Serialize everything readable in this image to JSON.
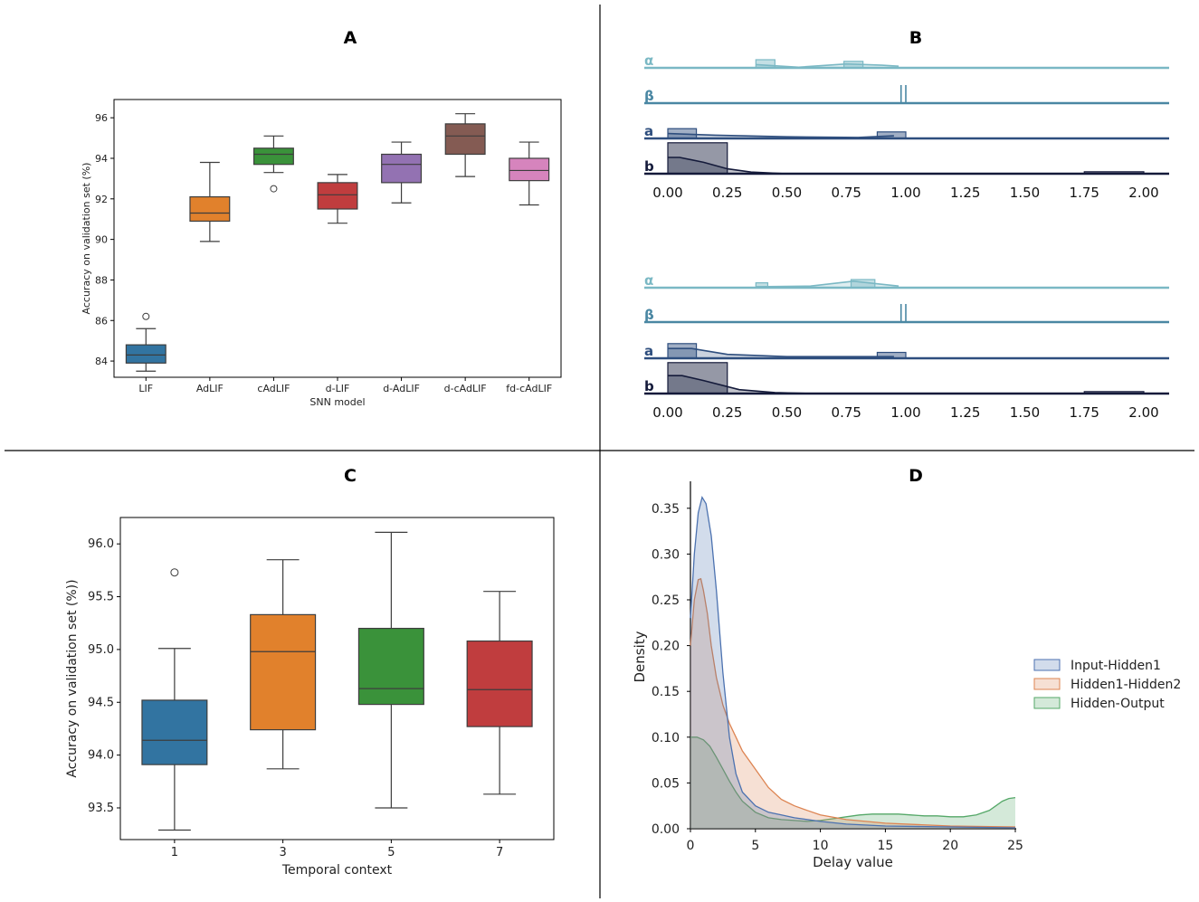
{
  "panels": {
    "A": "A",
    "B": "B",
    "C": "C",
    "D": "D"
  },
  "chart_data": [
    {
      "id": "A",
      "type": "box",
      "title": "A",
      "xlabel": "SNN model",
      "ylabel": "Accuracy on validation set (%)",
      "ylim": [
        83.2,
        96.9
      ],
      "yticks": [
        84,
        86,
        88,
        90,
        92,
        94,
        96
      ],
      "categories": [
        "LIF",
        "AdLIF",
        "cAdLIF",
        "d-LIF",
        "d-AdLIF",
        "d-cAdLIF",
        "fd-cAdLIF"
      ],
      "colors": [
        "#3274a1",
        "#e1812c",
        "#3a923a",
        "#c03d3e",
        "#9372b2",
        "#845b53",
        "#d684bd"
      ],
      "boxes": [
        {
          "whislo": 83.5,
          "q1": 83.9,
          "med": 84.3,
          "q3": 84.8,
          "whishi": 85.6,
          "fliers": [
            86.2
          ]
        },
        {
          "whislo": 89.9,
          "q1": 90.9,
          "med": 91.3,
          "q3": 92.1,
          "whishi": 93.8,
          "fliers": []
        },
        {
          "whislo": 93.3,
          "q1": 93.7,
          "med": 94.2,
          "q3": 94.5,
          "whishi": 95.1,
          "fliers": [
            92.5
          ]
        },
        {
          "whislo": 90.8,
          "q1": 91.5,
          "med": 92.2,
          "q3": 92.8,
          "whishi": 93.2,
          "fliers": []
        },
        {
          "whislo": 91.8,
          "q1": 92.8,
          "med": 93.7,
          "q3": 94.2,
          "whishi": 94.8,
          "fliers": []
        },
        {
          "whislo": 93.1,
          "q1": 94.2,
          "med": 95.1,
          "q3": 95.7,
          "whishi": 96.2,
          "fliers": []
        },
        {
          "whislo": 91.7,
          "q1": 92.9,
          "med": 93.4,
          "q3": 94.0,
          "whishi": 94.8,
          "fliers": []
        }
      ]
    },
    {
      "id": "B",
      "type": "ridgeline-histogram",
      "title": "B",
      "xlim": [
        -0.05,
        2.1
      ],
      "xticks": [
        "0.00",
        "0.25",
        "0.50",
        "0.75",
        "1.00",
        "1.25",
        "1.50",
        "1.75",
        "2.00"
      ],
      "row_labels": [
        "α",
        "β",
        "a",
        "b"
      ],
      "row_colors": [
        "#7ab8c4",
        "#4a87a3",
        "#2e4e7e",
        "#141a3a"
      ],
      "subplots": [
        {
          "rows": [
            {
              "bars": [
                {
                  "x0": 0.37,
                  "x1": 0.45,
                  "h": 0.25
                },
                {
                  "x0": 0.74,
                  "x1": 0.82,
                  "h": 0.2
                }
              ],
              "kde": [
                [
                  0.37,
                  0.1
                ],
                [
                  0.55,
                  0.02
                ],
                [
                  0.75,
                  0.12
                ],
                [
                  0.9,
                  0.08
                ],
                [
                  0.97,
                  0.05
                ]
              ]
            },
            {
              "bars": [],
              "spikes": [
                0.98,
                1.0
              ]
            },
            {
              "bars": [
                {
                  "x0": 0.0,
                  "x1": 0.12,
                  "h": 0.3
                },
                {
                  "x0": 0.88,
                  "x1": 1.0,
                  "h": 0.2
                }
              ],
              "kde": [
                [
                  0.0,
                  0.15
                ],
                [
                  0.2,
                  0.1
                ],
                [
                  0.5,
                  0.05
                ],
                [
                  0.8,
                  0.03
                ],
                [
                  0.95,
                  0.08
                ]
              ]
            },
            {
              "bars": [
                {
                  "x0": 0.0,
                  "x1": 0.25,
                  "h": 0.95
                },
                {
                  "x0": 1.75,
                  "x1": 2.0,
                  "h": 0.06
                }
              ],
              "kde": [
                [
                  0.0,
                  0.5
                ],
                [
                  0.05,
                  0.5
                ],
                [
                  0.15,
                  0.35
                ],
                [
                  0.25,
                  0.15
                ],
                [
                  0.35,
                  0.05
                ],
                [
                  0.5,
                  0.0
                ],
                [
                  2.0,
                  0.0
                ]
              ]
            }
          ]
        },
        {
          "rows": [
            {
              "bars": [
                {
                  "x0": 0.37,
                  "x1": 0.42,
                  "h": 0.15
                },
                {
                  "x0": 0.77,
                  "x1": 0.87,
                  "h": 0.25
                }
              ],
              "kde": [
                [
                  0.37,
                  0.03
                ],
                [
                  0.6,
                  0.05
                ],
                [
                  0.78,
                  0.2
                ],
                [
                  0.88,
                  0.12
                ],
                [
                  0.97,
                  0.05
                ]
              ]
            },
            {
              "bars": [],
              "spikes": [
                0.98,
                1.0
              ]
            },
            {
              "bars": [
                {
                  "x0": 0.0,
                  "x1": 0.12,
                  "h": 0.45
                },
                {
                  "x0": 0.88,
                  "x1": 1.0,
                  "h": 0.18
                }
              ],
              "kde": [
                [
                  0.0,
                  0.3
                ],
                [
                  0.1,
                  0.3
                ],
                [
                  0.25,
                  0.12
                ],
                [
                  0.5,
                  0.05
                ],
                [
                  0.95,
                  0.05
                ]
              ]
            },
            {
              "bars": [
                {
                  "x0": 0.0,
                  "x1": 0.25,
                  "h": 0.95
                },
                {
                  "x0": 1.75,
                  "x1": 2.0,
                  "h": 0.06
                }
              ],
              "kde": [
                [
                  0.0,
                  0.55
                ],
                [
                  0.06,
                  0.55
                ],
                [
                  0.15,
                  0.4
                ],
                [
                  0.3,
                  0.12
                ],
                [
                  0.45,
                  0.03
                ],
                [
                  0.6,
                  0.0
                ],
                [
                  2.0,
                  0.0
                ]
              ]
            }
          ]
        }
      ]
    },
    {
      "id": "C",
      "type": "box",
      "title": "C",
      "xlabel": "Temporal context",
      "ylabel": "Accuracy on validation set (%))",
      "ylim": [
        93.2,
        96.25
      ],
      "yticks": [
        "93.5",
        "94.0",
        "94.5",
        "95.0",
        "95.5",
        "96.0"
      ],
      "categories": [
        "1",
        "3",
        "5",
        "7"
      ],
      "colors": [
        "#3274a1",
        "#e1812c",
        "#3a923a",
        "#c03d3e"
      ],
      "boxes": [
        {
          "whislo": 93.29,
          "q1": 93.91,
          "med": 94.14,
          "q3": 94.52,
          "whishi": 95.01,
          "fliers": [
            95.73
          ]
        },
        {
          "whislo": 93.87,
          "q1": 94.24,
          "med": 94.98,
          "q3": 95.33,
          "whishi": 95.85,
          "fliers": []
        },
        {
          "whislo": 93.5,
          "q1": 94.48,
          "med": 94.63,
          "q3": 95.2,
          "whishi": 96.11,
          "fliers": []
        },
        {
          "whislo": 93.63,
          "q1": 94.27,
          "med": 94.62,
          "q3": 95.08,
          "whishi": 95.55,
          "fliers": []
        }
      ]
    },
    {
      "id": "D",
      "type": "area",
      "title": "D",
      "xlabel": "Delay value",
      "ylabel": "Density",
      "xlim": [
        0,
        25
      ],
      "ylim": [
        0,
        0.38
      ],
      "xticks": [
        0,
        5,
        10,
        15,
        20,
        25
      ],
      "yticks": [
        "0.00",
        "0.05",
        "0.10",
        "0.15",
        "0.20",
        "0.25",
        "0.30",
        "0.35"
      ],
      "series": [
        {
          "name": "Input-Hidden1",
          "color": "#4c72b0",
          "x": [
            0,
            0.3,
            0.6,
            0.9,
            1.2,
            1.6,
            2.0,
            2.5,
            3,
            3.5,
            4,
            5,
            6,
            7,
            8,
            10,
            12,
            15,
            20,
            25
          ],
          "y": [
            0.23,
            0.3,
            0.345,
            0.362,
            0.355,
            0.32,
            0.26,
            0.17,
            0.1,
            0.06,
            0.04,
            0.025,
            0.018,
            0.015,
            0.012,
            0.008,
            0.005,
            0.003,
            0.002,
            0.001
          ]
        },
        {
          "name": "Hidden1-Hidden2",
          "color": "#dd8452",
          "x": [
            0,
            0.3,
            0.6,
            0.8,
            1.0,
            1.3,
            1.6,
            2.0,
            2.5,
            3,
            3.5,
            4,
            5,
            6,
            7,
            8,
            9,
            10,
            12,
            15,
            20,
            25
          ],
          "y": [
            0.2,
            0.25,
            0.272,
            0.273,
            0.26,
            0.235,
            0.2,
            0.165,
            0.135,
            0.115,
            0.1,
            0.085,
            0.065,
            0.045,
            0.032,
            0.025,
            0.02,
            0.015,
            0.01,
            0.006,
            0.003,
            0.002
          ]
        },
        {
          "name": "Hidden-Output",
          "color": "#55a868",
          "x": [
            0,
            0.5,
            1.0,
            1.5,
            2.0,
            2.5,
            3,
            3.5,
            4,
            5,
            6,
            7,
            8,
            9,
            10,
            11,
            12,
            13,
            14,
            15,
            16,
            17,
            18,
            19,
            20,
            21,
            22,
            23,
            23.5,
            24,
            24.5,
            25
          ],
          "y": [
            0.1,
            0.1,
            0.097,
            0.09,
            0.078,
            0.065,
            0.052,
            0.04,
            0.03,
            0.018,
            0.012,
            0.01,
            0.009,
            0.008,
            0.009,
            0.011,
            0.013,
            0.015,
            0.016,
            0.016,
            0.016,
            0.015,
            0.014,
            0.014,
            0.013,
            0.013,
            0.015,
            0.02,
            0.025,
            0.03,
            0.033,
            0.034
          ]
        }
      ]
    }
  ]
}
